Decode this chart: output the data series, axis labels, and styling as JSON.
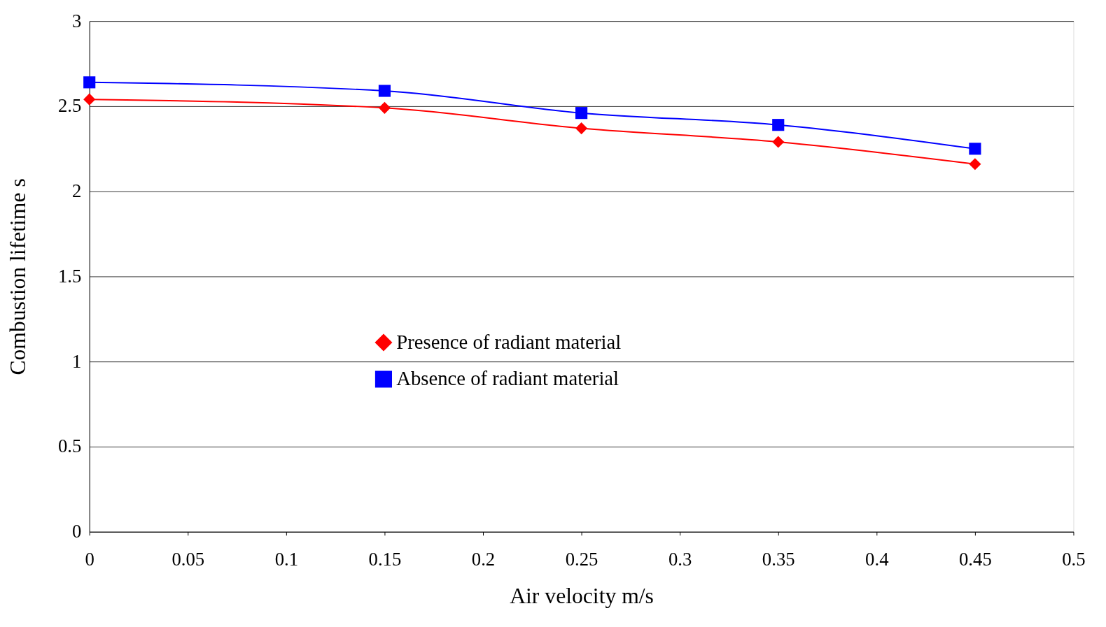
{
  "chart_data": {
    "type": "line",
    "xlabel": "Air velocity      m/s",
    "ylabel": "Combustion lifetime     s",
    "x": [
      0,
      0.15,
      0.25,
      0.35,
      0.45
    ],
    "series": [
      {
        "name": "Presence of radiant material",
        "color": "#ff0000",
        "marker": "diamond",
        "values": [
          2.54,
          2.49,
          2.37,
          2.29,
          2.16
        ]
      },
      {
        "name": "Absence of radiant material",
        "color": "#0000ff",
        "marker": "square",
        "values": [
          2.64,
          2.59,
          2.46,
          2.39,
          2.25
        ]
      }
    ],
    "xlim": [
      0,
      0.5
    ],
    "xticks": [
      0,
      0.05,
      0.1,
      0.15,
      0.2,
      0.25,
      0.3,
      0.35,
      0.4,
      0.45,
      0.5
    ],
    "ylim": [
      0,
      3
    ],
    "yticks": [
      0,
      0.5,
      1,
      1.5,
      2,
      2.5,
      3
    ],
    "grid": "y",
    "legend": "center",
    "line_style": "solid"
  }
}
